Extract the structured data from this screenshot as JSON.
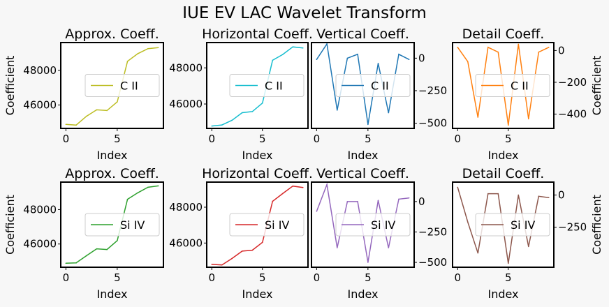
{
  "figure": {
    "title": "IUE EV LAC Wavelet Transform",
    "background": "#f7f7f7"
  },
  "chart_data": [
    {
      "type": "line",
      "title": "Approx. Coeff.",
      "xlabel": "Index",
      "ylabel": "Coefficient",
      "ylabel_side": "left",
      "yaxis_side": "left",
      "x": [
        0,
        1,
        2,
        3,
        4,
        5,
        6,
        7,
        8,
        9
      ],
      "xlim": [
        -0.5,
        9.5
      ],
      "xticks": [
        0,
        5
      ],
      "ylim": [
        44650,
        49600
      ],
      "yticks": [
        46000,
        48000
      ],
      "series": [
        {
          "name": "C II",
          "color": "#bcbd22",
          "values": [
            44880,
            44840,
            45350,
            45720,
            45680,
            46180,
            48520,
            48960,
            49250,
            49310
          ]
        }
      ],
      "legend": "center-right"
    },
    {
      "type": "line",
      "title": "Horizontal Coeff.",
      "xlabel": "Index",
      "ylabel": "",
      "ylabel_side": "none",
      "yaxis_side": "left",
      "x": [
        0,
        1,
        2,
        3,
        4,
        5,
        6,
        7,
        8,
        9
      ],
      "xlim": [
        -0.5,
        9.5
      ],
      "xticks": [
        0,
        5
      ],
      "ylim": [
        44650,
        49400
      ],
      "yticks": [
        46000,
        48000
      ],
      "series": [
        {
          "name": "C II",
          "color": "#17becf",
          "values": [
            44780,
            44840,
            45100,
            45520,
            45580,
            46050,
            48420,
            48740,
            49160,
            49100
          ]
        }
      ],
      "legend": "center-right"
    },
    {
      "type": "line",
      "title": "Vertical Coeff.",
      "xlabel": "Index",
      "ylabel": "",
      "ylabel_side": "none",
      "yaxis_side": "right",
      "x": [
        0,
        1,
        2,
        3,
        4,
        5,
        6,
        7,
        8,
        9
      ],
      "xlim": [
        -0.5,
        9.5
      ],
      "xticks": [
        0,
        5
      ],
      "ylim": [
        -540,
        120
      ],
      "yticks": [
        -500,
        -250,
        0
      ],
      "series": [
        {
          "name": "C II",
          "color": "#1f77b4",
          "values": [
            -10,
            110,
            -400,
            0,
            30,
            -510,
            -40,
            -420,
            30,
            -10
          ]
        }
      ],
      "legend": "center-right"
    },
    {
      "type": "line",
      "title": "Detail Coeff.",
      "xlabel": "Index",
      "ylabel": "Coefficient",
      "ylabel_side": "right",
      "yaxis_side": "right",
      "x": [
        0,
        1,
        2,
        3,
        4,
        5,
        6,
        7,
        8,
        9
      ],
      "xlim": [
        -0.5,
        9.5
      ],
      "xticks": [
        0,
        5
      ],
      "ylim": [
        -490,
        50
      ],
      "yticks": [
        -400,
        -200,
        0
      ],
      "series": [
        {
          "name": "C II",
          "color": "#ff7f0e",
          "values": [
            20,
            -70,
            -420,
            20,
            -10,
            -470,
            40,
            -430,
            -10,
            20
          ]
        }
      ],
      "legend": "center-right"
    },
    {
      "type": "line",
      "title": "Approx. Coeff.",
      "xlabel": "Index",
      "ylabel": "Coefficient",
      "ylabel_side": "left",
      "yaxis_side": "left",
      "x": [
        0,
        1,
        2,
        3,
        4,
        5,
        6,
        7,
        8,
        9
      ],
      "xlim": [
        -0.5,
        9.5
      ],
      "xticks": [
        0,
        5
      ],
      "ylim": [
        44650,
        49600
      ],
      "yticks": [
        46000,
        48000
      ],
      "series": [
        {
          "name": "Si IV",
          "color": "#2ca02c",
          "values": [
            44880,
            44900,
            45320,
            45720,
            45680,
            46200,
            48600,
            48980,
            49300,
            49380
          ]
        }
      ],
      "legend": "center-right"
    },
    {
      "type": "line",
      "title": "Horizontal Coeff.",
      "xlabel": "Index",
      "ylabel": "",
      "ylabel_side": "none",
      "yaxis_side": "left",
      "x": [
        0,
        1,
        2,
        3,
        4,
        5,
        6,
        7,
        8,
        9
      ],
      "xlim": [
        -0.5,
        9.5
      ],
      "xticks": [
        0,
        5
      ],
      "ylim": [
        44650,
        49400
      ],
      "yticks": [
        46000,
        48000
      ],
      "series": [
        {
          "name": "Si IV",
          "color": "#d62728",
          "values": [
            44810,
            44780,
            45140,
            45550,
            45600,
            46040,
            48330,
            48760,
            49180,
            49100
          ]
        }
      ],
      "legend": "center-right"
    },
    {
      "type": "line",
      "title": "Vertical Coeff.",
      "xlabel": "Index",
      "ylabel": "",
      "ylabel_side": "none",
      "yaxis_side": "right",
      "x": [
        0,
        1,
        2,
        3,
        4,
        5,
        6,
        7,
        8,
        9
      ],
      "xlim": [
        -0.5,
        9.5
      ],
      "xticks": [
        0,
        5
      ],
      "ylim": [
        -540,
        160
      ],
      "yticks": [
        -500,
        -250,
        0
      ],
      "series": [
        {
          "name": "Si IV",
          "color": "#9467bd",
          "values": [
            -80,
            140,
            -380,
            0,
            0,
            -500,
            10,
            -380,
            20,
            30
          ]
        }
      ],
      "legend": "center-right"
    },
    {
      "type": "line",
      "title": "Detail Coeff.",
      "xlabel": "Index",
      "ylabel": "Coefficient",
      "ylabel_side": "right",
      "yaxis_side": "right",
      "x": [
        0,
        1,
        2,
        3,
        4,
        5,
        6,
        7,
        8,
        9
      ],
      "xlim": [
        -0.5,
        9.5
      ],
      "xticks": [
        0,
        5
      ],
      "ylim": [
        -560,
        100
      ],
      "yticks": [
        -250,
        0
      ],
      "series": [
        {
          "name": "Si IV",
          "color": "#8c564b",
          "values": [
            60,
            -210,
            -450,
            10,
            10,
            -530,
            0,
            -400,
            -10,
            -20
          ]
        }
      ],
      "legend": "center-right"
    }
  ]
}
